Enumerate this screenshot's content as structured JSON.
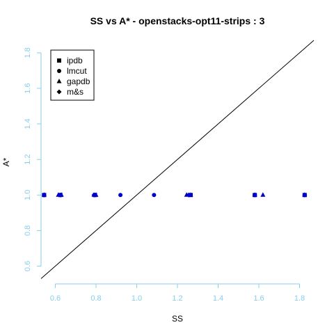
{
  "chart_data": {
    "type": "scatter",
    "title": "SS vs A* - openstacks-opt11-strips : 3",
    "xlabel": "SS",
    "ylabel": "A*",
    "xlim": [
      0.53,
      1.87
    ],
    "ylim": [
      0.5,
      1.87
    ],
    "x_ticks": [
      0.6,
      0.8,
      1.0,
      1.2,
      1.4,
      1.6,
      1.8
    ],
    "x_tick_labels": [
      "0.6",
      "0.8",
      "1.0",
      "1.2",
      "1.4",
      "1.6",
      "1.8"
    ],
    "y_ticks": [
      0.6,
      0.8,
      1.0,
      1.2,
      1.4,
      1.6,
      1.8
    ],
    "y_tick_labels": [
      "0.6",
      "0.8",
      "1.0",
      "1.2",
      "1.4",
      "1.6",
      "1.8"
    ],
    "grid": false,
    "legend_position": "top-left",
    "reference_line": "y = x",
    "point_color": "#0000cc",
    "tick_color": "#87ceeb",
    "series": [
      {
        "name": "ipdb",
        "marker": "square",
        "x": [
          0.545,
          0.625,
          0.795,
          1.265,
          1.58,
          1.825
        ],
        "y": [
          1.0,
          1.0,
          1.0,
          1.0,
          1.0,
          1.0
        ]
      },
      {
        "name": "lmcut",
        "marker": "circle",
        "x": [
          0.545,
          0.625,
          0.795,
          0.92,
          1.085,
          1.58,
          1.825
        ],
        "y": [
          1.0,
          1.0,
          1.0,
          1.0,
          1.0,
          1.0,
          1.0
        ]
      },
      {
        "name": "gapdb",
        "marker": "triangle",
        "x": [
          0.545,
          0.615,
          0.63,
          0.79,
          0.8,
          1.245,
          1.265,
          1.58,
          1.62,
          1.825
        ],
        "y": [
          1.0,
          1.0,
          1.0,
          1.0,
          1.0,
          1.0,
          1.0,
          1.0,
          1.0,
          1.0
        ]
      },
      {
        "name": "m&s",
        "marker": "diamond",
        "x": [
          0.545,
          0.625,
          0.79,
          1.255,
          1.58,
          1.825
        ],
        "y": [
          1.0,
          1.0,
          1.0,
          1.0,
          1.0,
          1.0
        ]
      }
    ]
  }
}
